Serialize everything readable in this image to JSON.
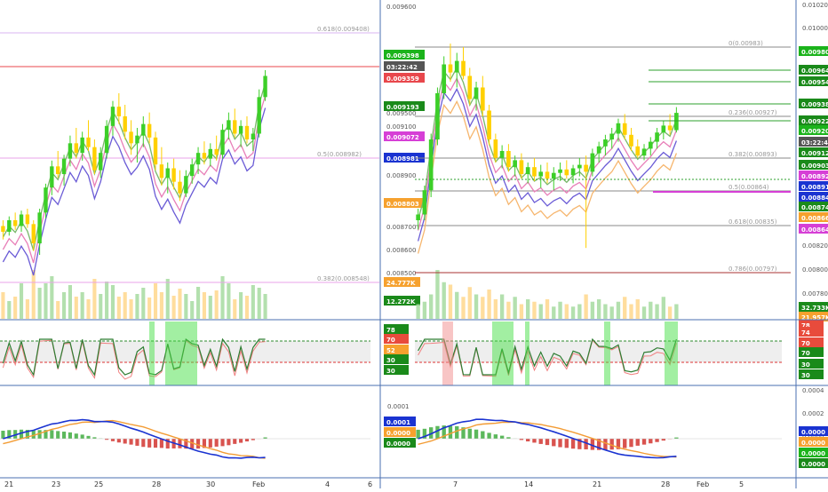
{
  "colors": {
    "up": "#3ccf28",
    "down": "#ffd000",
    "vol_up": "#a6dba0",
    "vol_down": "#ffd78c",
    "axis": "#4a6fb0",
    "ma_fast": "#79b86a",
    "ma_pink": "#e87fb8",
    "ma_purple": "#6a5bd6",
    "ma_orange": "#f6b66e",
    "rsi_line": "#2e7d32",
    "rsi_signal": "#f08080",
    "macd_line": "#1a33d1",
    "macd_signal": "#f39c34",
    "hist_up": "#5cb85c",
    "hist_down": "#d9534f",
    "rsi_band": "#46e046",
    "rsi_band_red": "#f28b8b"
  },
  "left_chart": {
    "price_ticks": [
      "0.009600",
      "0.009500",
      "0.009100",
      "0.008900",
      "0.008700",
      "0.008600",
      "0.008500"
    ],
    "fib_labels": [
      "0.618(0.009408)",
      "0.5(0.008982)",
      "0.382(0.008548)"
    ],
    "price_tags": [
      "0.009398",
      "03:22:42",
      "0.009359",
      "0.009193",
      "0.009072",
      "0.008981",
      "0.008803",
      "24.777K",
      "12.272K"
    ],
    "rsi_tags": [
      "78",
      "70",
      "52",
      "30",
      "30"
    ],
    "macd_ticks": [
      "0.0001"
    ],
    "macd_tags": [
      "0.0001",
      "0.0000",
      "0.0000"
    ],
    "time_labels": [
      "21",
      "23",
      "25",
      "28",
      "30",
      "Feb",
      "4",
      "6"
    ]
  },
  "right_chart": {
    "price_ticks": [
      "0.01020",
      "0.01000",
      "0.00820",
      "0.00800",
      "0.00780",
      "0.00740"
    ],
    "fib_labels": [
      "0(0.00983)",
      "0.236(0.00927)",
      "0.382(0.00893)",
      "0.5(0.00864)",
      "0.618(0.00835)",
      "0.786(0.00797)"
    ],
    "price_tags": [
      "0.00980",
      "0.00964",
      "0.00954",
      "0.00938",
      "0.00922",
      "0.00920",
      "03:22:42",
      "0.00912",
      "0.00903",
      "0.00892",
      "0.00891",
      "0.00884",
      "0.00874",
      "0.00866",
      "0.00864",
      "32.733K",
      "21.957K"
    ],
    "rsi_tags": [
      "78",
      "74",
      "70",
      "70",
      "30",
      "30"
    ],
    "macd_ticks": [
      "0.0004",
      "0.0002",
      "0.0000"
    ],
    "macd_tags": [
      "0.0000",
      "0.0000",
      "0.0000",
      "0.0000"
    ],
    "time_labels": [
      "7",
      "14",
      "21",
      "28",
      "Feb",
      "5"
    ]
  },
  "chart_data": [
    {
      "type": "candlestick",
      "panel": "left",
      "ylim": [
        0.0085,
        0.0097
      ],
      "ohlc": [
        [
          0.00871,
          0.00874,
          0.00864,
          0.00868
        ],
        [
          0.00868,
          0.00876,
          0.00866,
          0.00874
        ],
        [
          0.00874,
          0.00878,
          0.00869,
          0.00871
        ],
        [
          0.00871,
          0.00879,
          0.00868,
          0.00877
        ],
        [
          0.00877,
          0.0088,
          0.0087,
          0.00872
        ],
        [
          0.00872,
          0.00874,
          0.00858,
          0.00862
        ],
        [
          0.00862,
          0.0088,
          0.00856,
          0.00878
        ],
        [
          0.00878,
          0.00893,
          0.00875,
          0.00891
        ],
        [
          0.00891,
          0.00905,
          0.00887,
          0.00902
        ],
        [
          0.00902,
          0.0091,
          0.00896,
          0.00898
        ],
        [
          0.00898,
          0.00908,
          0.00892,
          0.00906
        ],
        [
          0.00906,
          0.00918,
          0.00902,
          0.00914
        ],
        [
          0.00914,
          0.00922,
          0.00906,
          0.00909
        ],
        [
          0.00909,
          0.0092,
          0.00905,
          0.00917
        ],
        [
          0.00917,
          0.00926,
          0.0091,
          0.00912
        ],
        [
          0.00912,
          0.00916,
          0.00898,
          0.009
        ],
        [
          0.009,
          0.00912,
          0.00896,
          0.00909
        ],
        [
          0.00909,
          0.00926,
          0.00906,
          0.00923
        ],
        [
          0.00923,
          0.00936,
          0.00918,
          0.00933
        ],
        [
          0.00933,
          0.0094,
          0.00924,
          0.00928
        ],
        [
          0.00928,
          0.00934,
          0.00916,
          0.0092
        ],
        [
          0.0092,
          0.00926,
          0.00908,
          0.00914
        ],
        [
          0.00914,
          0.00922,
          0.00904,
          0.00918
        ],
        [
          0.00918,
          0.00928,
          0.00912,
          0.00924
        ],
        [
          0.00924,
          0.0093,
          0.00914,
          0.00917
        ],
        [
          0.00917,
          0.0092,
          0.009,
          0.00903
        ],
        [
          0.00903,
          0.00912,
          0.00892,
          0.00896
        ],
        [
          0.00896,
          0.00904,
          0.00888,
          0.00901
        ],
        [
          0.00901,
          0.00906,
          0.0089,
          0.00894
        ],
        [
          0.00894,
          0.009,
          0.00884,
          0.00888
        ],
        [
          0.00888,
          0.009,
          0.00886,
          0.00897
        ],
        [
          0.00897,
          0.00906,
          0.00893,
          0.00903
        ],
        [
          0.00903,
          0.00912,
          0.00898,
          0.00909
        ],
        [
          0.00909,
          0.00915,
          0.00903,
          0.00906
        ],
        [
          0.00906,
          0.00914,
          0.00902,
          0.00911
        ],
        [
          0.00911,
          0.00918,
          0.00905,
          0.00908
        ],
        [
          0.00908,
          0.00924,
          0.00906,
          0.00921
        ],
        [
          0.00921,
          0.0093,
          0.00916,
          0.00926
        ],
        [
          0.00926,
          0.00932,
          0.00917,
          0.00919
        ],
        [
          0.00919,
          0.00926,
          0.00912,
          0.00923
        ],
        [
          0.00923,
          0.00928,
          0.00914,
          0.00916
        ],
        [
          0.00916,
          0.00922,
          0.0091,
          0.00919
        ],
        [
          0.00919,
          0.00942,
          0.00917,
          0.00938
        ],
        [
          0.00938,
          0.00952,
          0.00936,
          0.00949
        ]
      ],
      "volume": [
        30,
        20,
        25,
        40,
        22,
        55,
        35,
        40,
        48,
        20,
        30,
        38,
        25,
        30,
        22,
        45,
        28,
        42,
        38,
        25,
        30,
        22,
        28,
        35,
        24,
        40,
        30,
        45,
        26,
        34,
        28,
        20,
        36,
        30,
        26,
        32,
        48,
        40,
        22,
        30,
        26,
        38,
        35,
        28
      ]
    },
    {
      "type": "candlestick",
      "panel": "right",
      "ylim": [
        0.0079,
        0.0099
      ],
      "ohlc": [
        [
          0.0083,
          0.0084,
          0.00822,
          0.00835
        ],
        [
          0.00835,
          0.0086,
          0.0083,
          0.00856
        ],
        [
          0.00856,
          0.00905,
          0.0085,
          0.009
        ],
        [
          0.009,
          0.00945,
          0.00895,
          0.0094
        ],
        [
          0.0094,
          0.00972,
          0.00935,
          0.00965
        ],
        [
          0.00965,
          0.00983,
          0.0095,
          0.00958
        ],
        [
          0.00958,
          0.00975,
          0.00945,
          0.00968
        ],
        [
          0.00968,
          0.0098,
          0.00952,
          0.00955
        ],
        [
          0.00955,
          0.00962,
          0.0093,
          0.00935
        ],
        [
          0.00935,
          0.0095,
          0.00925,
          0.00945
        ],
        [
          0.00945,
          0.00955,
          0.0092,
          0.00925
        ],
        [
          0.00925,
          0.0093,
          0.00895,
          0.009
        ],
        [
          0.009,
          0.00905,
          0.0088,
          0.00884
        ],
        [
          0.00884,
          0.00895,
          0.00875,
          0.0089
        ],
        [
          0.0089,
          0.00896,
          0.00872,
          0.00876
        ],
        [
          0.00876,
          0.00886,
          0.00868,
          0.00882
        ],
        [
          0.00882,
          0.00888,
          0.00866,
          0.0087
        ],
        [
          0.0087,
          0.0088,
          0.00862,
          0.00876
        ],
        [
          0.00876,
          0.00884,
          0.00864,
          0.00868
        ],
        [
          0.00868,
          0.00878,
          0.00858,
          0.00872
        ],
        [
          0.00872,
          0.0088,
          0.00862,
          0.00866
        ],
        [
          0.00866,
          0.00876,
          0.00856,
          0.00871
        ],
        [
          0.00871,
          0.0088,
          0.00864,
          0.00874
        ],
        [
          0.00874,
          0.00882,
          0.00866,
          0.00869
        ],
        [
          0.00869,
          0.00878,
          0.00862,
          0.00875
        ],
        [
          0.00875,
          0.00884,
          0.00868,
          0.00878
        ],
        [
          0.00878,
          0.00886,
          0.00806,
          0.00872
        ],
        [
          0.00872,
          0.00892,
          0.00868,
          0.00888
        ],
        [
          0.00888,
          0.00898,
          0.0088,
          0.00894
        ],
        [
          0.00894,
          0.00904,
          0.00886,
          0.009
        ],
        [
          0.009,
          0.0091,
          0.00892,
          0.00905
        ],
        [
          0.00905,
          0.00918,
          0.00898,
          0.00914
        ],
        [
          0.00914,
          0.00922,
          0.009,
          0.00904
        ],
        [
          0.00904,
          0.0091,
          0.0089,
          0.00894
        ],
        [
          0.00894,
          0.009,
          0.00884,
          0.00886
        ],
        [
          0.00886,
          0.00896,
          0.00882,
          0.00892
        ],
        [
          0.00892,
          0.00902,
          0.00886,
          0.00898
        ],
        [
          0.00898,
          0.0091,
          0.00892,
          0.00906
        ],
        [
          0.00906,
          0.00916,
          0.009,
          0.00912
        ],
        [
          0.00912,
          0.00922,
          0.00904,
          0.00908
        ],
        [
          0.00908,
          0.00928,
          0.00906,
          0.00923
        ]
      ],
      "volume": [
        12,
        14,
        20,
        40,
        30,
        28,
        22,
        18,
        26,
        20,
        18,
        24,
        16,
        20,
        14,
        18,
        12,
        16,
        14,
        12,
        16,
        10,
        14,
        12,
        10,
        12,
        20,
        14,
        16,
        12,
        10,
        14,
        18,
        12,
        16,
        10,
        14,
        12,
        18,
        10,
        12
      ]
    }
  ]
}
